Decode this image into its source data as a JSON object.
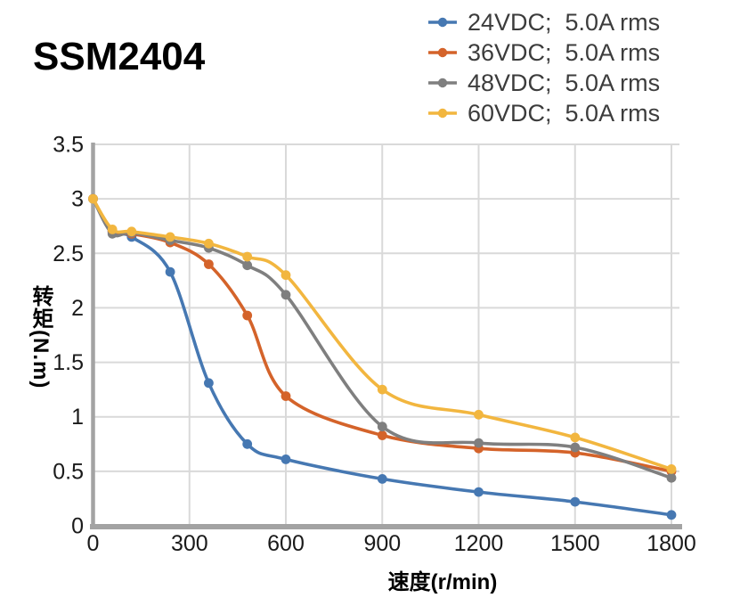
{
  "chart_data": {
    "type": "line",
    "title": "SSM2404",
    "xlabel": "速度(r/min)",
    "ylabel": "转矩(N.m)",
    "xlim": [
      0,
      1800
    ],
    "ylim": [
      0,
      3.5
    ],
    "xticks": [
      "0",
      "300",
      "600",
      "900",
      "1200",
      "1500",
      "1800"
    ],
    "yticks": [
      "0",
      "0.5",
      "1",
      "1.5",
      "2",
      "2.5",
      "3",
      "3.5"
    ],
    "grid": true,
    "legend_position": "top-right",
    "x": [
      0,
      60,
      120,
      240,
      360,
      480,
      600,
      900,
      1200,
      1500,
      1800
    ],
    "series": [
      {
        "name": "24VDC;  5.0A rms",
        "color": "#4678B2",
        "values": [
          3.0,
          2.7,
          2.65,
          2.33,
          1.31,
          0.75,
          0.61,
          0.43,
          0.31,
          0.22,
          0.1
        ]
      },
      {
        "name": "36VDC;  5.0A rms",
        "color": "#D4632A",
        "values": [
          3.0,
          2.7,
          2.68,
          2.6,
          2.4,
          1.93,
          1.19,
          0.83,
          0.71,
          0.67,
          0.5
        ]
      },
      {
        "name": "48VDC;  5.0A rms",
        "color": "#7F7F7F",
        "values": [
          3.0,
          2.68,
          2.69,
          2.62,
          2.55,
          2.39,
          2.12,
          0.91,
          0.76,
          0.72,
          0.44
        ]
      },
      {
        "name": "60VDC;  5.0A rms",
        "color": "#F2B63F",
        "values": [
          3.0,
          2.72,
          2.7,
          2.65,
          2.59,
          2.47,
          2.3,
          1.25,
          1.02,
          0.81,
          0.52
        ]
      }
    ],
    "marker_style": "circle-on-line"
  }
}
